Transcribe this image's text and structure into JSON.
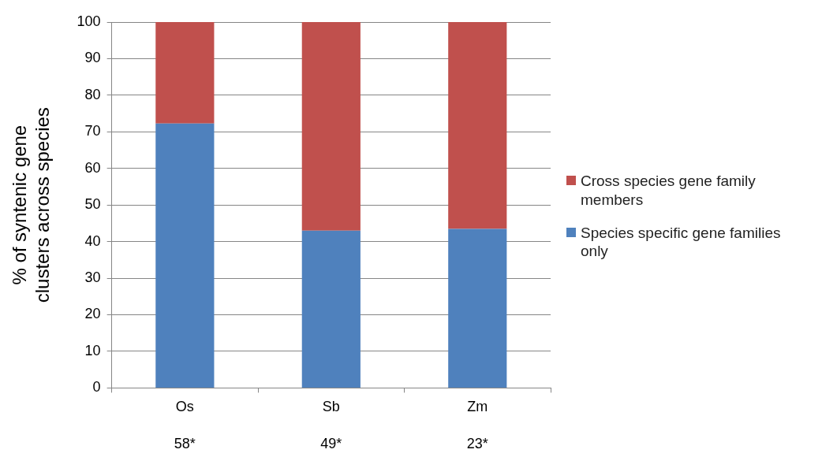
{
  "chart_data": {
    "type": "bar",
    "stacked": true,
    "ylabel": "% of syntenic gene clusters across species",
    "categories": [
      "Os",
      "Sb",
      "Zm"
    ],
    "series": [
      {
        "name": "Species specific gene families only",
        "color": "#4f81bd",
        "values": [
          72.3,
          43.0,
          43.5
        ]
      },
      {
        "name": "Cross species gene family members",
        "color": "#c0504d",
        "values": [
          27.7,
          57.0,
          56.5
        ]
      }
    ],
    "ylim": [
      0,
      100
    ],
    "yticks": [
      0,
      10,
      20,
      30,
      40,
      50,
      60,
      70,
      80,
      90,
      100
    ],
    "grid": "y",
    "legend": "right",
    "annotations": [
      "58*",
      "49*",
      "23*"
    ]
  }
}
